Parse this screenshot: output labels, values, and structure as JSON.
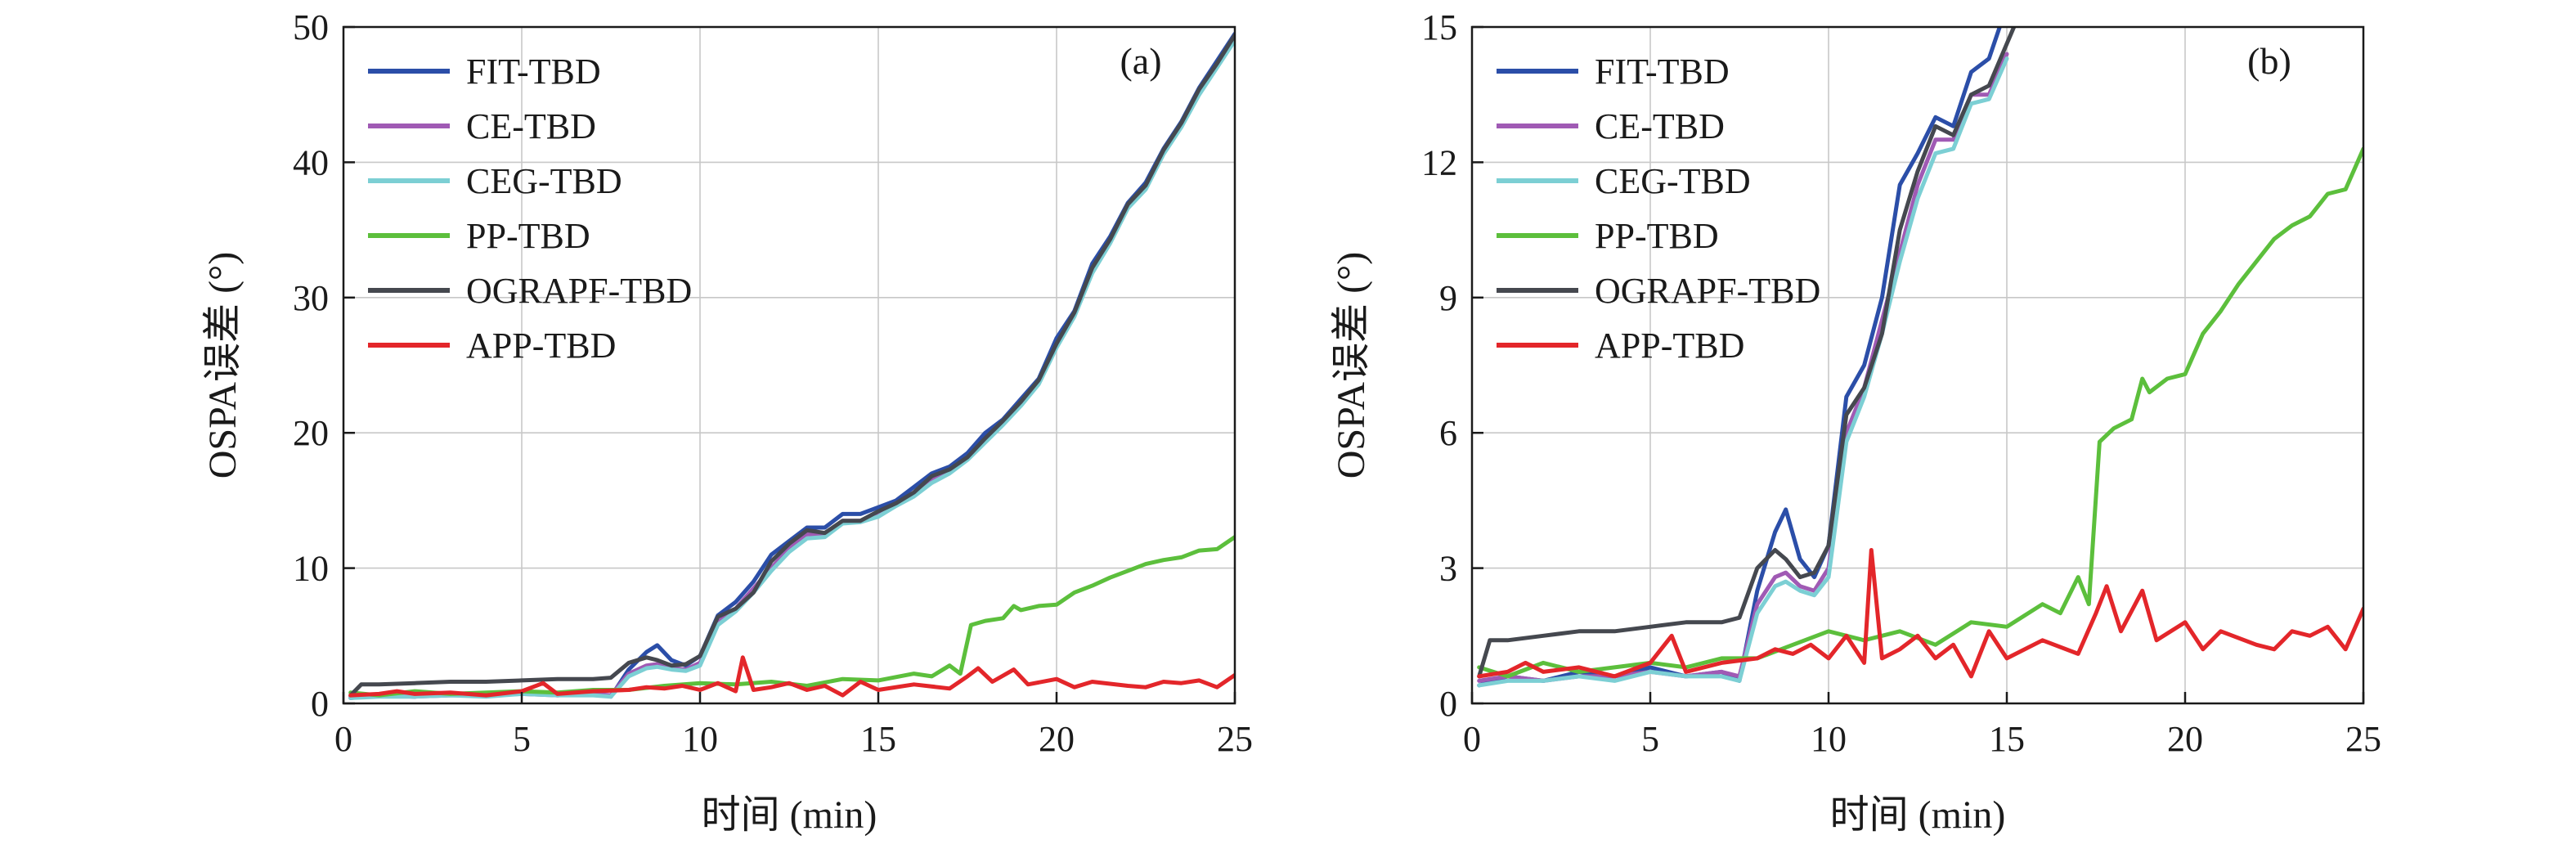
{
  "figure": {
    "xlabel": "时间 (min)",
    "ylabel": "OSPA误差 (°)"
  },
  "chart_data": [
    {
      "type": "line",
      "panel_label": "(a)",
      "xlabel": "时间 (min)",
      "ylabel": "OSPA误差 (°)",
      "xlim": [
        0,
        25
      ],
      "ylim": [
        0,
        50
      ],
      "xticks": [
        0,
        5,
        10,
        15,
        20,
        25
      ],
      "yticks": [
        0,
        10,
        20,
        30,
        40,
        50
      ],
      "grid": true,
      "legend_position": "top-left",
      "series": [
        {
          "name": "FIT-TBD",
          "color": "#2b4ea8",
          "x": [
            0.2,
            1,
            2,
            3,
            4,
            5,
            6,
            7,
            7.5,
            8,
            8.5,
            8.8,
            9.2,
            9.6,
            10,
            10.5,
            11,
            11.5,
            12,
            12.5,
            13,
            13.5,
            14,
            14.5,
            15,
            15.5,
            16,
            16.5,
            17,
            17.5,
            18,
            18.5,
            19,
            19.5,
            20,
            20.5,
            21,
            21.5,
            22,
            22.5,
            23,
            23.5,
            24,
            24.5,
            25
          ],
          "y": [
            0.4,
            0.6,
            0.5,
            0.7,
            0.6,
            0.8,
            0.6,
            0.7,
            0.5,
            2.5,
            3.8,
            4.3,
            3.2,
            2.8,
            3.5,
            6.5,
            7.5,
            9.0,
            11.0,
            12.0,
            13.0,
            13.0,
            14.0,
            14.0,
            14.5,
            15.0,
            16.0,
            17.0,
            17.5,
            18.5,
            20.0,
            21.0,
            22.5,
            24.0,
            27.0,
            29.0,
            32.5,
            34.5,
            37.0,
            38.5,
            41.0,
            43.0,
            45.5,
            47.5,
            49.5
          ]
        },
        {
          "name": "CE-TBD",
          "color": "#a05ab4",
          "x": [
            0.2,
            1,
            2,
            3,
            4,
            5,
            6,
            7,
            7.5,
            8,
            8.5,
            8.8,
            9.2,
            9.6,
            10,
            10.5,
            11,
            11.5,
            12,
            12.5,
            13,
            13.5,
            14,
            14.5,
            15,
            15.5,
            16,
            16.5,
            17,
            17.5,
            18,
            18.5,
            19,
            19.5,
            20,
            20.5,
            21,
            21.5,
            22,
            22.5,
            23,
            23.5,
            24,
            24.5,
            25
          ],
          "y": [
            0.5,
            0.6,
            0.5,
            0.6,
            0.6,
            0.7,
            0.6,
            0.7,
            0.6,
            2.2,
            2.8,
            2.9,
            2.6,
            2.5,
            3.0,
            6.0,
            7.0,
            8.5,
            10.0,
            11.5,
            12.5,
            12.5,
            13.5,
            13.5,
            14.0,
            14.8,
            15.5,
            16.5,
            17.2,
            18.2,
            19.5,
            20.8,
            22.2,
            23.8,
            26.5,
            28.8,
            32.0,
            34.2,
            36.8,
            38.2,
            40.8,
            42.8,
            45.2,
            47.2,
            49.2
          ]
        },
        {
          "name": "CEG-TBD",
          "color": "#7ccfd4",
          "x": [
            0.2,
            1,
            2,
            3,
            4,
            5,
            6,
            7,
            7.5,
            8,
            8.5,
            8.8,
            9.2,
            9.6,
            10,
            10.5,
            11,
            11.5,
            12,
            12.5,
            13,
            13.5,
            14,
            14.5,
            15,
            15.5,
            16,
            16.5,
            17,
            17.5,
            18,
            18.5,
            19,
            19.5,
            20,
            20.5,
            21,
            21.5,
            22,
            22.5,
            23,
            23.5,
            24,
            24.5,
            25
          ],
          "y": [
            0.4,
            0.5,
            0.5,
            0.6,
            0.5,
            0.7,
            0.6,
            0.6,
            0.5,
            2.0,
            2.6,
            2.7,
            2.5,
            2.4,
            2.8,
            5.8,
            6.8,
            8.2,
            9.8,
            11.2,
            12.2,
            12.3,
            13.3,
            13.4,
            13.8,
            14.6,
            15.3,
            16.3,
            17.0,
            18.0,
            19.3,
            20.6,
            22.0,
            23.6,
            26.3,
            28.6,
            31.8,
            34.0,
            36.6,
            38.0,
            40.6,
            42.6,
            45.0,
            47.0,
            49.0
          ]
        },
        {
          "name": "PP-TBD",
          "color": "#5cbf3c",
          "x": [
            0.2,
            1,
            2,
            3,
            4,
            5,
            6,
            7,
            8,
            9,
            10,
            11,
            12,
            13,
            14,
            15,
            16,
            16.5,
            17,
            17.3,
            17.6,
            18,
            18.5,
            18.8,
            19,
            19.5,
            20,
            20.5,
            21,
            21.5,
            22,
            22.5,
            23,
            23.5,
            24,
            24.5,
            25
          ],
          "y": [
            0.8,
            0.6,
            0.9,
            0.7,
            0.8,
            0.9,
            0.8,
            1.0,
            1.0,
            1.3,
            1.5,
            1.4,
            1.6,
            1.3,
            1.8,
            1.7,
            2.2,
            2.0,
            2.8,
            2.2,
            5.8,
            6.1,
            6.3,
            7.2,
            6.9,
            7.2,
            7.3,
            8.2,
            8.7,
            9.3,
            9.8,
            10.3,
            10.6,
            10.8,
            11.3,
            11.4,
            12.3
          ]
        },
        {
          "name": "OGRAPF-TBD",
          "color": "#45484f",
          "x": [
            0.2,
            0.5,
            1,
            2,
            3,
            4,
            5,
            6,
            7,
            7.5,
            8,
            8.5,
            8.8,
            9.2,
            9.6,
            10,
            10.5,
            11,
            11.5,
            12,
            12.5,
            13,
            13.5,
            14,
            14.5,
            15,
            15.5,
            16,
            16.5,
            17,
            17.5,
            18,
            18.5,
            19,
            19.5,
            20,
            20.5,
            21,
            21.5,
            22,
            22.5,
            23,
            23.5,
            24,
            24.5,
            25
          ],
          "y": [
            0.6,
            1.4,
            1.4,
            1.5,
            1.6,
            1.6,
            1.7,
            1.8,
            1.8,
            1.9,
            3.0,
            3.4,
            3.2,
            2.8,
            2.9,
            3.5,
            6.4,
            7.0,
            8.2,
            10.5,
            11.8,
            12.8,
            12.6,
            13.5,
            13.5,
            14.2,
            14.8,
            15.6,
            16.8,
            17.3,
            18.2,
            19.6,
            20.9,
            22.3,
            23.9,
            26.6,
            28.9,
            32.2,
            34.3,
            36.9,
            38.3,
            40.9,
            42.9,
            45.4,
            47.3,
            49.4
          ]
        },
        {
          "name": "APP-TBD",
          "color": "#e3262a",
          "x": [
            0.2,
            1,
            1.5,
            2,
            3,
            4,
            5,
            5.6,
            6,
            7,
            8,
            8.5,
            9,
            9.5,
            10,
            10.5,
            11,
            11.2,
            11.5,
            12,
            12.5,
            13,
            13.5,
            14,
            14.5,
            15,
            16,
            17,
            17.5,
            17.8,
            18.2,
            18.8,
            19.2,
            20,
            20.5,
            21,
            22,
            22.5,
            23,
            23.5,
            24,
            24.5,
            25
          ],
          "y": [
            0.6,
            0.7,
            0.9,
            0.7,
            0.8,
            0.6,
            0.9,
            1.5,
            0.7,
            0.9,
            1.0,
            1.2,
            1.1,
            1.3,
            1.0,
            1.5,
            0.9,
            3.4,
            1.0,
            1.2,
            1.5,
            1.0,
            1.3,
            0.6,
            1.6,
            1.0,
            1.4,
            1.1,
            2.0,
            2.6,
            1.6,
            2.5,
            1.4,
            1.8,
            1.2,
            1.6,
            1.3,
            1.2,
            1.6,
            1.5,
            1.7,
            1.2,
            2.1
          ]
        }
      ]
    },
    {
      "type": "line",
      "panel_label": "(b)",
      "xlabel": "时间 (min)",
      "ylabel": "OSPA误差 (°)",
      "xlim": [
        0,
        25
      ],
      "ylim": [
        0,
        15
      ],
      "xticks": [
        0,
        5,
        10,
        15,
        20,
        25
      ],
      "yticks": [
        0,
        3,
        6,
        9,
        12,
        15
      ],
      "grid": true,
      "legend_position": "top-left",
      "series": [
        {
          "name": "FIT-TBD",
          "color": "#2b4ea8",
          "x": [
            0.2,
            1,
            2,
            3,
            4,
            5,
            6,
            7,
            7.5,
            8,
            8.5,
            8.8,
            9.2,
            9.6,
            10,
            10.5,
            11,
            11.5,
            12,
            12.5,
            13,
            13.5,
            14,
            14.5,
            14.8
          ],
          "y": [
            0.4,
            0.6,
            0.5,
            0.7,
            0.6,
            0.8,
            0.6,
            0.7,
            0.5,
            2.5,
            3.8,
            4.3,
            3.2,
            2.8,
            3.5,
            6.8,
            7.5,
            9.0,
            11.5,
            12.2,
            13.0,
            12.8,
            14.0,
            14.3,
            15.0
          ]
        },
        {
          "name": "CE-TBD",
          "color": "#a05ab4",
          "x": [
            0.2,
            1,
            2,
            3,
            4,
            5,
            6,
            7,
            7.5,
            8,
            8.5,
            8.8,
            9.2,
            9.6,
            10,
            10.5,
            11,
            11.5,
            12,
            12.5,
            13,
            13.5,
            14,
            14.5,
            15
          ],
          "y": [
            0.5,
            0.6,
            0.5,
            0.6,
            0.6,
            0.7,
            0.6,
            0.7,
            0.6,
            2.2,
            2.8,
            2.9,
            2.6,
            2.5,
            3.0,
            6.0,
            7.0,
            8.5,
            10.0,
            11.5,
            12.5,
            12.5,
            13.5,
            13.5,
            14.4
          ]
        },
        {
          "name": "CEG-TBD",
          "color": "#7ccfd4",
          "x": [
            0.2,
            1,
            2,
            3,
            4,
            5,
            6,
            7,
            7.5,
            8,
            8.5,
            8.8,
            9.2,
            9.6,
            10,
            10.5,
            11,
            11.5,
            12,
            12.5,
            13,
            13.5,
            14,
            14.5,
            15
          ],
          "y": [
            0.4,
            0.5,
            0.5,
            0.6,
            0.5,
            0.7,
            0.6,
            0.6,
            0.5,
            2.0,
            2.6,
            2.7,
            2.5,
            2.4,
            2.8,
            5.8,
            6.8,
            8.2,
            9.8,
            11.2,
            12.2,
            12.3,
            13.3,
            13.4,
            14.3
          ]
        },
        {
          "name": "PP-TBD",
          "color": "#5cbf3c",
          "x": [
            0.2,
            1,
            2,
            3,
            4,
            5,
            6,
            7,
            8,
            9,
            10,
            11,
            12,
            13,
            14,
            15,
            16,
            16.5,
            17,
            17.3,
            17.6,
            18,
            18.5,
            18.8,
            19,
            19.5,
            20,
            20.5,
            21,
            21.5,
            22,
            22.5,
            23,
            23.5,
            24,
            24.5,
            25
          ],
          "y": [
            0.8,
            0.6,
            0.9,
            0.7,
            0.8,
            0.9,
            0.8,
            1.0,
            1.0,
            1.3,
            1.6,
            1.4,
            1.6,
            1.3,
            1.8,
            1.7,
            2.2,
            2.0,
            2.8,
            2.2,
            5.8,
            6.1,
            6.3,
            7.2,
            6.9,
            7.2,
            7.3,
            8.2,
            8.7,
            9.3,
            9.8,
            10.3,
            10.6,
            10.8,
            11.3,
            11.4,
            12.3
          ]
        },
        {
          "name": "OGRAPF-TBD",
          "color": "#45484f",
          "x": [
            0.2,
            0.5,
            1,
            2,
            3,
            4,
            5,
            6,
            7,
            7.5,
            8,
            8.5,
            8.8,
            9.2,
            9.6,
            10,
            10.5,
            11,
            11.5,
            12,
            12.5,
            13,
            13.5,
            14,
            14.5,
            15.2
          ],
          "y": [
            0.6,
            1.4,
            1.4,
            1.5,
            1.6,
            1.6,
            1.7,
            1.8,
            1.8,
            1.9,
            3.0,
            3.4,
            3.2,
            2.8,
            2.9,
            3.5,
            6.4,
            7.0,
            8.2,
            10.5,
            11.8,
            12.8,
            12.6,
            13.5,
            13.7,
            15.0
          ]
        },
        {
          "name": "APP-TBD",
          "color": "#e3262a",
          "x": [
            0.2,
            1,
            1.5,
            2,
            3,
            4,
            5,
            5.6,
            6,
            7,
            8,
            8.5,
            9,
            9.5,
            10,
            10.5,
            11,
            11.2,
            11.5,
            12,
            12.5,
            13,
            13.5,
            14,
            14.5,
            15,
            16,
            17,
            17.5,
            17.8,
            18.2,
            18.8,
            19.2,
            20,
            20.5,
            21,
            22,
            22.5,
            23,
            23.5,
            24,
            24.5,
            25
          ],
          "y": [
            0.6,
            0.7,
            0.9,
            0.7,
            0.8,
            0.6,
            0.9,
            1.5,
            0.7,
            0.9,
            1.0,
            1.2,
            1.1,
            1.3,
            1.0,
            1.5,
            0.9,
            3.4,
            1.0,
            1.2,
            1.5,
            1.0,
            1.3,
            0.6,
            1.6,
            1.0,
            1.4,
            1.1,
            2.0,
            2.6,
            1.6,
            2.5,
            1.4,
            1.8,
            1.2,
            1.6,
            1.3,
            1.2,
            1.6,
            1.5,
            1.7,
            1.2,
            2.1
          ]
        }
      ]
    }
  ]
}
